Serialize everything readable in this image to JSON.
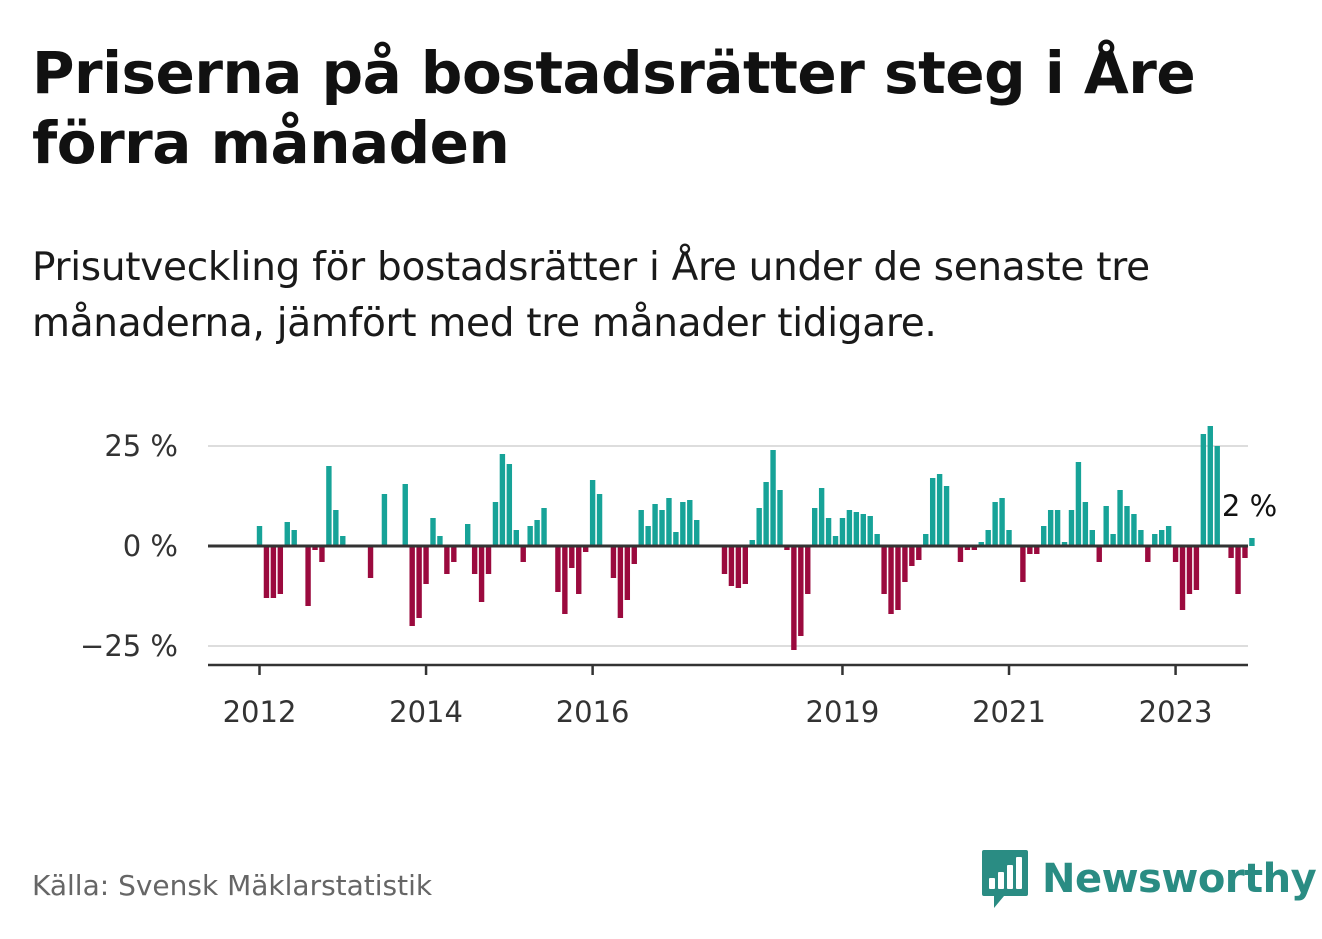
{
  "title": "Priserna på bostadsrätter steg i Åre förra månaden",
  "subtitle": "Prisutveckling för bostadsrätter i Åre under de senaste tre månaderna, jämfört med tre månader tidigare.",
  "source": "Källa: Svensk Mäklarstatistik",
  "brand": {
    "name": "Newsworthy",
    "icon": "newsworthy-logo-icon"
  },
  "colors": {
    "positive": "#17a398",
    "negative": "#9b0a3e",
    "grid": "#dddddd",
    "axis": "#333333",
    "brand": "#2a8c83"
  },
  "chart_data": {
    "type": "bar",
    "title": "",
    "xlabel": "",
    "ylabel": "",
    "ylim": [
      -30,
      30
    ],
    "start_month": "2012-01",
    "y_ticks": [
      {
        "value": 25,
        "label": "25 %"
      },
      {
        "value": 0,
        "label": "0 %"
      },
      {
        "value": -25,
        "label": "−25 %"
      }
    ],
    "x_ticks": [
      {
        "month": "2012-01",
        "label": "2012"
      },
      {
        "month": "2014-01",
        "label": "2014"
      },
      {
        "month": "2016-01",
        "label": "2016"
      },
      {
        "month": "2019-01",
        "label": "2019"
      },
      {
        "month": "2021-01",
        "label": "2021"
      },
      {
        "month": "2023-01",
        "label": "2023"
      }
    ],
    "end_label": "2 %",
    "grid": true,
    "values": [
      5,
      -13,
      -13,
      -12,
      6,
      4,
      0,
      -15,
      -1,
      -4,
      20,
      9,
      2.5,
      0,
      0,
      0,
      -8,
      0,
      13,
      0,
      0,
      15.5,
      -20,
      -18,
      -9.5,
      7,
      2.5,
      -7,
      -4,
      0,
      5.5,
      -7,
      -14,
      -7,
      11,
      23,
      20.5,
      4,
      -4,
      5,
      6.5,
      9.5,
      0,
      -11.5,
      -17,
      -5.5,
      -12,
      -1.5,
      16.5,
      13,
      0,
      -8,
      -18,
      -13.5,
      -4.5,
      9,
      5,
      10.5,
      9,
      12,
      3.5,
      11,
      11.5,
      6.5,
      0,
      0,
      0,
      -7,
      -10,
      -10.5,
      -9.5,
      1.5,
      9.5,
      16,
      24,
      14,
      -1,
      -26,
      -22.5,
      -12,
      9.5,
      14.5,
      7,
      2.5,
      7,
      9,
      8.5,
      8,
      7.5,
      3,
      -12,
      -17,
      -16,
      -9,
      -5,
      -3.5,
      3,
      17,
      18,
      15,
      0,
      -4,
      -1,
      -1,
      1,
      4,
      11,
      12,
      4,
      0,
      -9,
      -2,
      -2,
      5,
      9,
      9,
      1,
      9,
      21,
      11,
      4,
      -4,
      10,
      3,
      14,
      10,
      8,
      4,
      -4,
      3,
      4,
      5,
      -4,
      -16,
      -12,
      -11,
      28,
      30,
      25,
      0,
      -3,
      -12,
      -3,
      2
    ]
  }
}
